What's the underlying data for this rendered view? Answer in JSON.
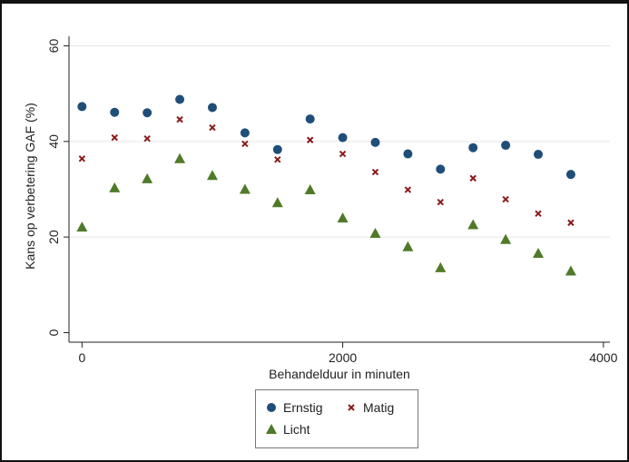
{
  "chart_data": {
    "type": "scatter",
    "title": "",
    "xlabel": "Behandelduur in minuten",
    "ylabel": "Kans op verbetering GAF (%)",
    "xlim": [
      -100,
      4050
    ],
    "ylim": [
      -2,
      62
    ],
    "xticks": [
      0,
      2000,
      4000
    ],
    "yticks": [
      0,
      20,
      40,
      60
    ],
    "xtick_labels": [
      "0",
      "2000",
      "4000"
    ],
    "ytick_labels": [
      "0",
      "20",
      "40",
      "60"
    ],
    "grid": "horizontal",
    "legend_placement": "bottom",
    "x": [
      0,
      250,
      500,
      750,
      1000,
      1250,
      1500,
      1750,
      2000,
      2250,
      2500,
      2750,
      3000,
      3250,
      3500,
      3750
    ],
    "series": [
      {
        "name": "Ernstig",
        "marker": "circle",
        "color": "#1f4e79",
        "values": [
          47.3,
          46.1,
          46.0,
          48.8,
          47.1,
          41.8,
          38.3,
          44.7,
          40.8,
          39.8,
          37.4,
          34.2,
          38.7,
          39.2,
          37.3,
          33.1
        ]
      },
      {
        "name": "Matig",
        "marker": "cross",
        "color": "#8b1a1a",
        "values": [
          36.4,
          40.8,
          40.6,
          44.6,
          42.9,
          39.5,
          36.2,
          40.3,
          37.4,
          33.6,
          29.9,
          27.3,
          32.3,
          27.9,
          24.9,
          23.0
        ]
      },
      {
        "name": "Licht",
        "marker": "triangle",
        "color": "#4f7a28",
        "values": [
          22.1,
          30.3,
          32.2,
          36.4,
          32.9,
          30.0,
          27.2,
          29.9,
          24.0,
          20.8,
          18.0,
          13.6,
          22.6,
          19.5,
          16.6,
          12.9
        ]
      }
    ]
  }
}
